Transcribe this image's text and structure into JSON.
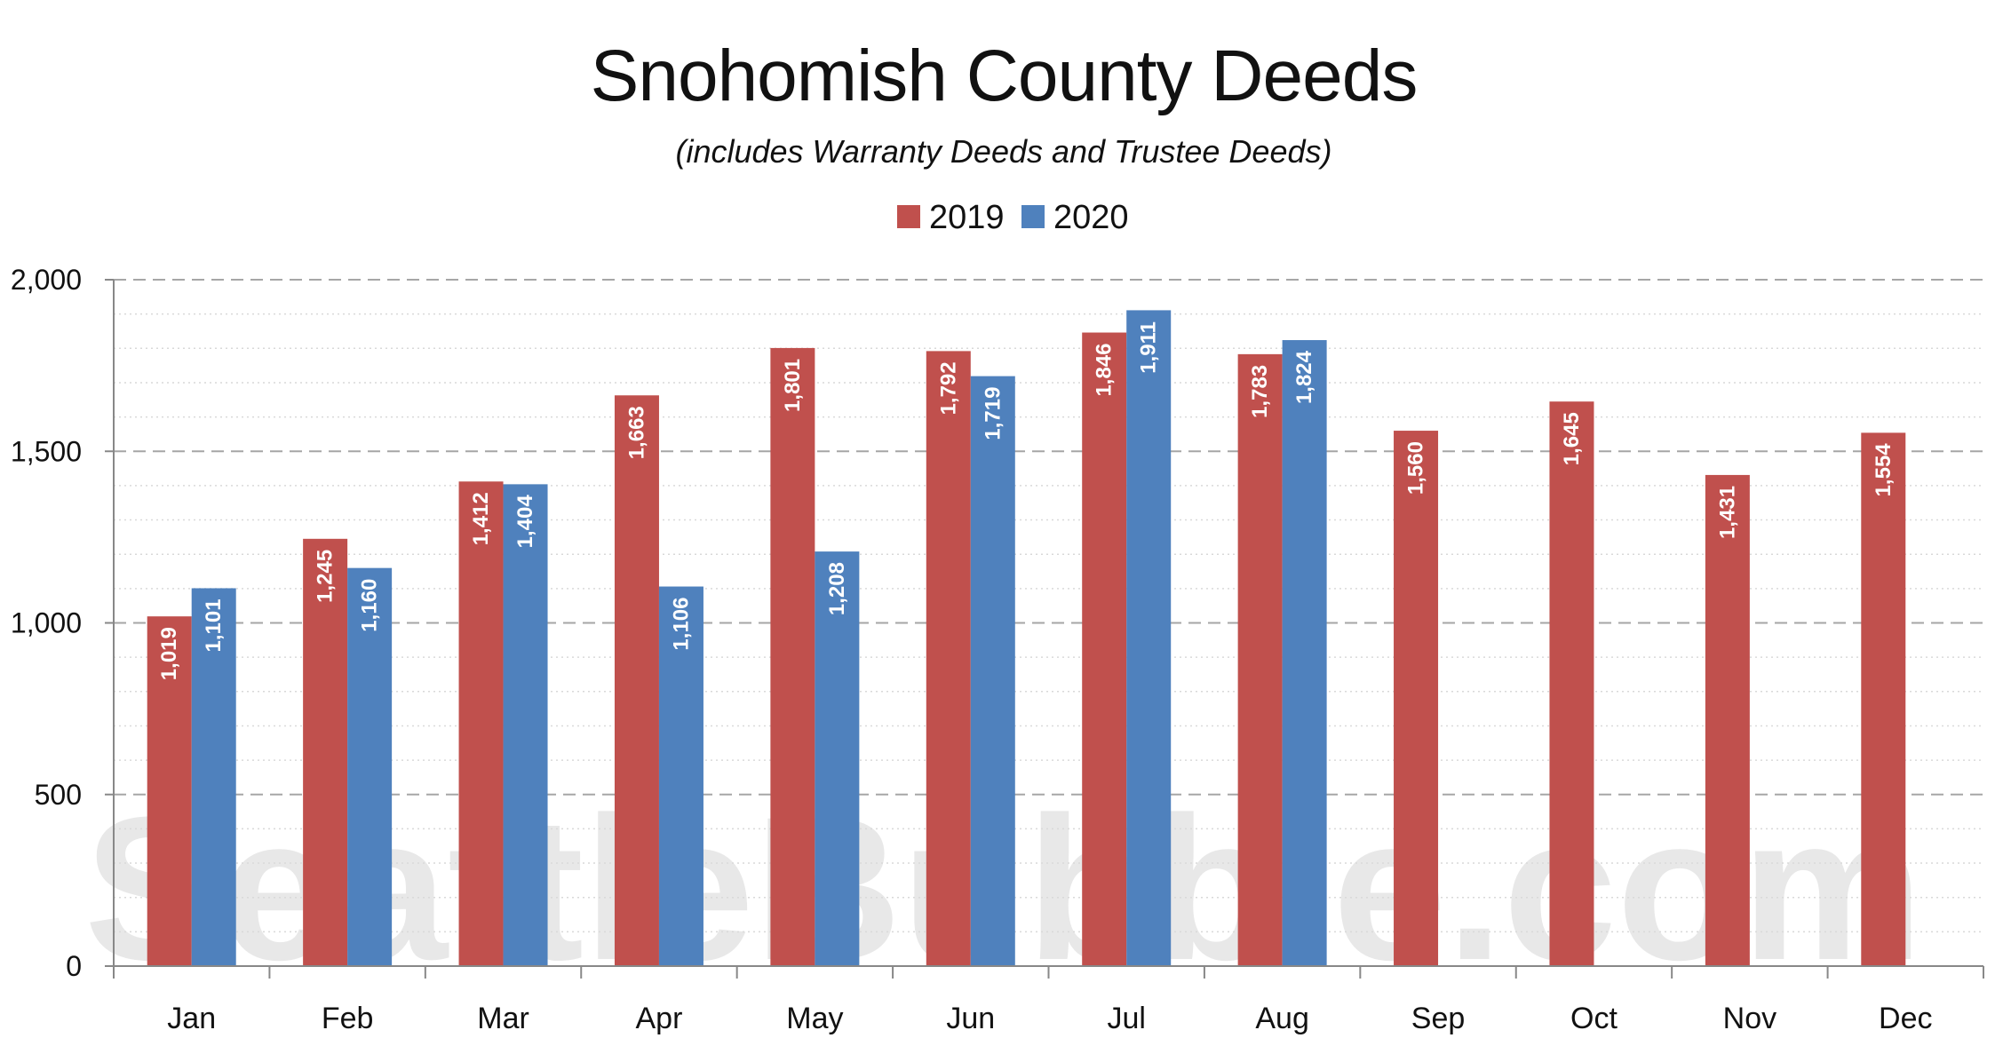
{
  "chart_data": {
    "type": "bar",
    "title": "Snohomish County Deeds",
    "subtitle": "(includes Warranty Deeds and Trustee Deeds)",
    "watermark": "SeattleBubble.com",
    "categories": [
      "Jan",
      "Feb",
      "Mar",
      "Apr",
      "May",
      "Jun",
      "Jul",
      "Aug",
      "Sep",
      "Oct",
      "Nov",
      "Dec"
    ],
    "series": [
      {
        "name": "2019",
        "color": "#c0504d",
        "values": [
          1019,
          1245,
          1412,
          1663,
          1801,
          1792,
          1846,
          1783,
          1560,
          1645,
          1431,
          1554
        ],
        "labels": [
          "1,019",
          "1,245",
          "1,412",
          "1,663",
          "1,801",
          "1,792",
          "1,846",
          "1,783",
          "1,560",
          "1,645",
          "1,431",
          "1,554"
        ]
      },
      {
        "name": "2020",
        "color": "#4f81bd",
        "values": [
          1101,
          1160,
          1404,
          1106,
          1208,
          1719,
          1911,
          1824,
          null,
          null,
          null,
          null
        ],
        "labels": [
          "1,101",
          "1,160",
          "1,404",
          "1,106",
          "1,208",
          "1,719",
          "1,911",
          "1,824",
          null,
          null,
          null,
          null
        ]
      }
    ],
    "ylim": [
      0,
      2000
    ],
    "y_ticks": [
      0,
      500,
      1000,
      1500,
      2000
    ],
    "y_tick_labels": [
      "0",
      "500",
      "1,000",
      "1,500",
      "2,000"
    ],
    "grid": true,
    "legend_position": "top-center"
  }
}
